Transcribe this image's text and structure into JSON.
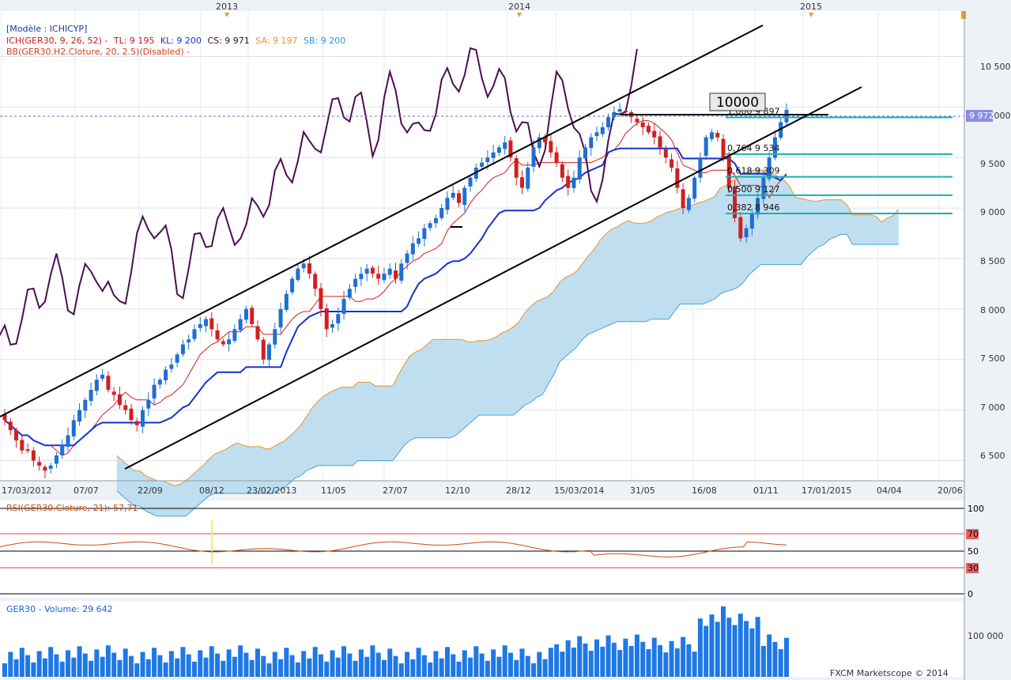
{
  "colors": {
    "bull": "#1f6fd1",
    "bear": "#d21f1f",
    "tenkan": "#d61c1c",
    "kijun": "#1533cf",
    "chikou": "#4a0f4f",
    "senkou_a": "#e8922e",
    "senkou_b": "#45a0de",
    "cloud": "#b8dcef",
    "fib": "#1ab0b0",
    "volume": "#1e78e6",
    "rsi": "#d24a0a",
    "plot_bg": "#ffffff",
    "panel_bg": "#eef2f7"
  },
  "header": {
    "model": "[Modèle : ICHICYP]",
    "ich_label": "ICH(GER30, 9, 26, 52) -",
    "tl": "TL: 9 195",
    "kl": "KL: 9 200",
    "cs": "CS: 9 971",
    "sa": "SA: 9 197",
    "sb": "SB: 9 200",
    "bb": "BB(GER30.H2.Cloture, 20, 2.5)(Disabled) -"
  },
  "top_axis": {
    "years": [
      "2013",
      "2014",
      "2015"
    ]
  },
  "price_axis": {
    "ticks": [
      "10 500",
      "10 000",
      "9 500",
      "9 000",
      "8 500",
      "8 000",
      "7 500",
      "7 000",
      "6 500"
    ],
    "current": "9 972"
  },
  "date_axis": {
    "labels": [
      "17/03/2012",
      "07/07",
      "22/09",
      "08/12",
      "23/02/2013",
      "11/05",
      "27/07",
      "12/10",
      "28/12",
      "15/03/2014",
      "31/05",
      "16/08",
      "01/11",
      "17/01/2015",
      "04/04",
      "20/06"
    ]
  },
  "annotation": {
    "box": "10000"
  },
  "fib_levels": [
    {
      "label": "1,000 9 897",
      "value": 9897
    },
    {
      "label": "0,764 9 534",
      "value": 9534
    },
    {
      "label": "0,618 9 309",
      "value": 9309
    },
    {
      "label": "0,500 9 127",
      "value": 9127
    },
    {
      "label": "0,382 8 946",
      "value": 8946
    }
  ],
  "rsi_panel": {
    "title": "RSI(GER30.Cloture, 21): 57,71",
    "ticks": [
      "100",
      "70",
      "50",
      "30",
      "0"
    ],
    "value": 57.71
  },
  "volume_panel": {
    "title": "GER30 - Volume: 29 642",
    "tick": "100 000",
    "footer": "FXCM Marketscope © 2014"
  },
  "chart_data": {
    "type": "candlestick",
    "instrument": "GER30",
    "y_axis_range": [
      6300,
      10950
    ],
    "closes": [
      6900,
      6800,
      6700,
      6600,
      6600,
      6500,
      6450,
      6400,
      6450,
      6550,
      6650,
      6750,
      6900,
      7000,
      7100,
      7200,
      7300,
      7350,
      7200,
      7150,
      7050,
      7000,
      6900,
      6850,
      7000,
      7100,
      7250,
      7300,
      7400,
      7450,
      7550,
      7650,
      7700,
      7800,
      7850,
      7900,
      7800,
      7700,
      7650,
      7700,
      7800,
      7900,
      8000,
      7850,
      7700,
      7500,
      7650,
      7800,
      8000,
      8150,
      8300,
      8400,
      8450,
      8350,
      8200,
      8000,
      7800,
      7850,
      7950,
      8100,
      8200,
      8300,
      8350,
      8400,
      8350,
      8300,
      8350,
      8400,
      8300,
      8450,
      8550,
      8650,
      8700,
      8800,
      8850,
      8900,
      9000,
      9100,
      9150,
      9050,
      9200,
      9300,
      9400,
      9450,
      9500,
      9550,
      9600,
      9650,
      9500,
      9300,
      9200,
      9400,
      9600,
      9700,
      9650,
      9550,
      9450,
      9300,
      9200,
      9300,
      9500,
      9600,
      9700,
      9750,
      9800,
      9900,
      9950,
      9980,
      9950,
      9900,
      9850,
      9800,
      9750,
      9700,
      9600,
      9500,
      9400,
      9200,
      9000,
      9100,
      9300,
      9500,
      9700,
      9750,
      9700,
      9500,
      9200,
      8900,
      8700,
      8800,
      8950,
      9100,
      9300,
      9500,
      9700,
      9850,
      9972
    ]
  }
}
